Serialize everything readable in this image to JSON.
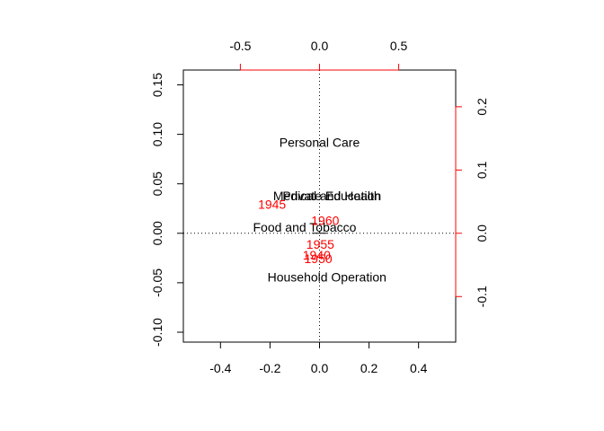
{
  "chart_data": {
    "type": "scatter",
    "subtype": "biplot",
    "title": "",
    "xlabel": "",
    "ylabel": "",
    "primary_axes": {
      "xlim": [
        -0.55,
        0.55
      ],
      "ylim": [
        -0.11,
        0.165
      ],
      "bottom_ticks": [
        -0.4,
        -0.2,
        0.0,
        0.2,
        0.4
      ],
      "bottom_tick_labels": [
        "-0.4",
        "-0.2",
        "0.0",
        "0.2",
        "0.4"
      ],
      "left_ticks": [
        -0.1,
        -0.05,
        0.0,
        0.05,
        0.1,
        0.15
      ],
      "left_tick_labels": [
        "-0.10",
        "-0.05",
        "0.00",
        "0.05",
        "0.10",
        "0.15"
      ]
    },
    "secondary_axes": {
      "color": "#ff0000",
      "xlim": [
        -0.86,
        0.86
      ],
      "ylim": [
        -0.172,
        0.258
      ],
      "top_ticks": [
        -0.5,
        0.0,
        0.5
      ],
      "top_tick_labels": [
        "-0.5",
        "0.0",
        "0.5"
      ],
      "right_ticks": [
        -0.1,
        0.0,
        0.1,
        0.2
      ],
      "right_tick_labels": [
        "-0.1",
        "0.0",
        "0.1",
        "0.2"
      ]
    },
    "reference_lines": {
      "x": 0,
      "y": 0,
      "style": "dotted"
    },
    "series": [
      {
        "name": "",
        "color": "#000000",
        "axes": "primary",
        "points": [
          {
            "label": "Food and Tobacco",
            "x": -0.06,
            "y": 0.006
          },
          {
            "label": "Household Operation",
            "x": 0.03,
            "y": -0.044
          },
          {
            "label": "Medical and Health",
            "x": 0.03,
            "y": 0.038
          },
          {
            "label": "Personal Care",
            "x": 0.0,
            "y": 0.092
          },
          {
            "label": "Private Education",
            "x": 0.05,
            "y": 0.038
          }
        ]
      },
      {
        "name": "",
        "color": "#ff0000",
        "axes": "secondary",
        "points": [
          {
            "label": "1940",
            "x": -0.018,
            "y": -0.034
          },
          {
            "label": "1945",
            "x": -0.3,
            "y": 0.046
          },
          {
            "label": "1950",
            "x": -0.008,
            "y": -0.04
          },
          {
            "label": "1955",
            "x": 0.005,
            "y": -0.017
          },
          {
            "label": "1960",
            "x": 0.036,
            "y": 0.02
          }
        ]
      }
    ]
  }
}
